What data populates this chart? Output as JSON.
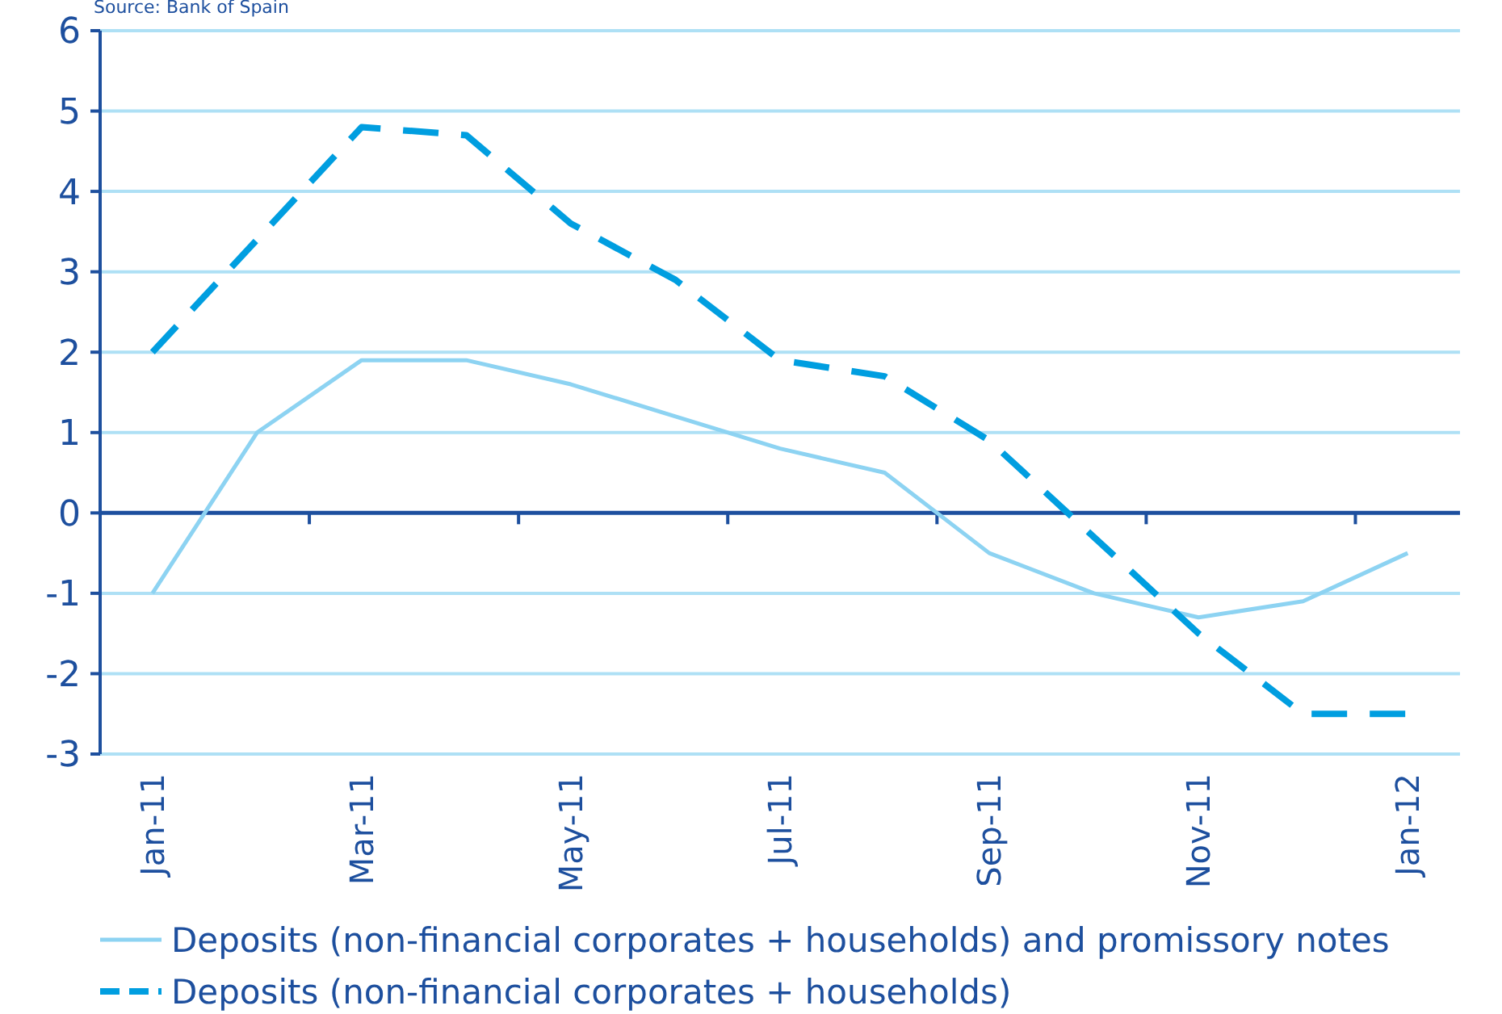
{
  "chart_data": {
    "type": "line",
    "annotations": [
      "Source: Bank of Spain"
    ],
    "categories": [
      "Jan-11",
      null,
      "Mar-11",
      null,
      "May-11",
      null,
      "Jul-11",
      null,
      "Sep-11",
      null,
      "Nov-11",
      null,
      "Jan-12"
    ],
    "series": [
      {
        "name": "Deposits (non-financial corporates + households) and promissory notes",
        "color": "#8dd3f2",
        "line_style": "solid",
        "values": [
          -1,
          1,
          1.9,
          1.9,
          1.6,
          1.2,
          0.8,
          0.5,
          -0.5,
          -1,
          -1.3,
          -1.1,
          -0.5
        ]
      },
      {
        "name": "Deposits (non-financial corporates + households)",
        "color": "#009ee0",
        "line_style": "dashed",
        "values": [
          2,
          3.4,
          4.8,
          4.7,
          3.6,
          2.9,
          1.9,
          1.7,
          0.9,
          -0.3,
          -1.5,
          -2.5,
          -2.5
        ]
      }
    ],
    "ylim": [
      -3,
      6
    ],
    "yticks": [
      -3,
      -2,
      -1,
      0,
      1,
      2,
      3,
      4,
      5,
      6
    ],
    "ref_lines": [
      {
        "axis": "y",
        "value": 0,
        "color": "#1d4f9e"
      }
    ],
    "grid": "y",
    "legend": "bottom",
    "marker": "none"
  }
}
